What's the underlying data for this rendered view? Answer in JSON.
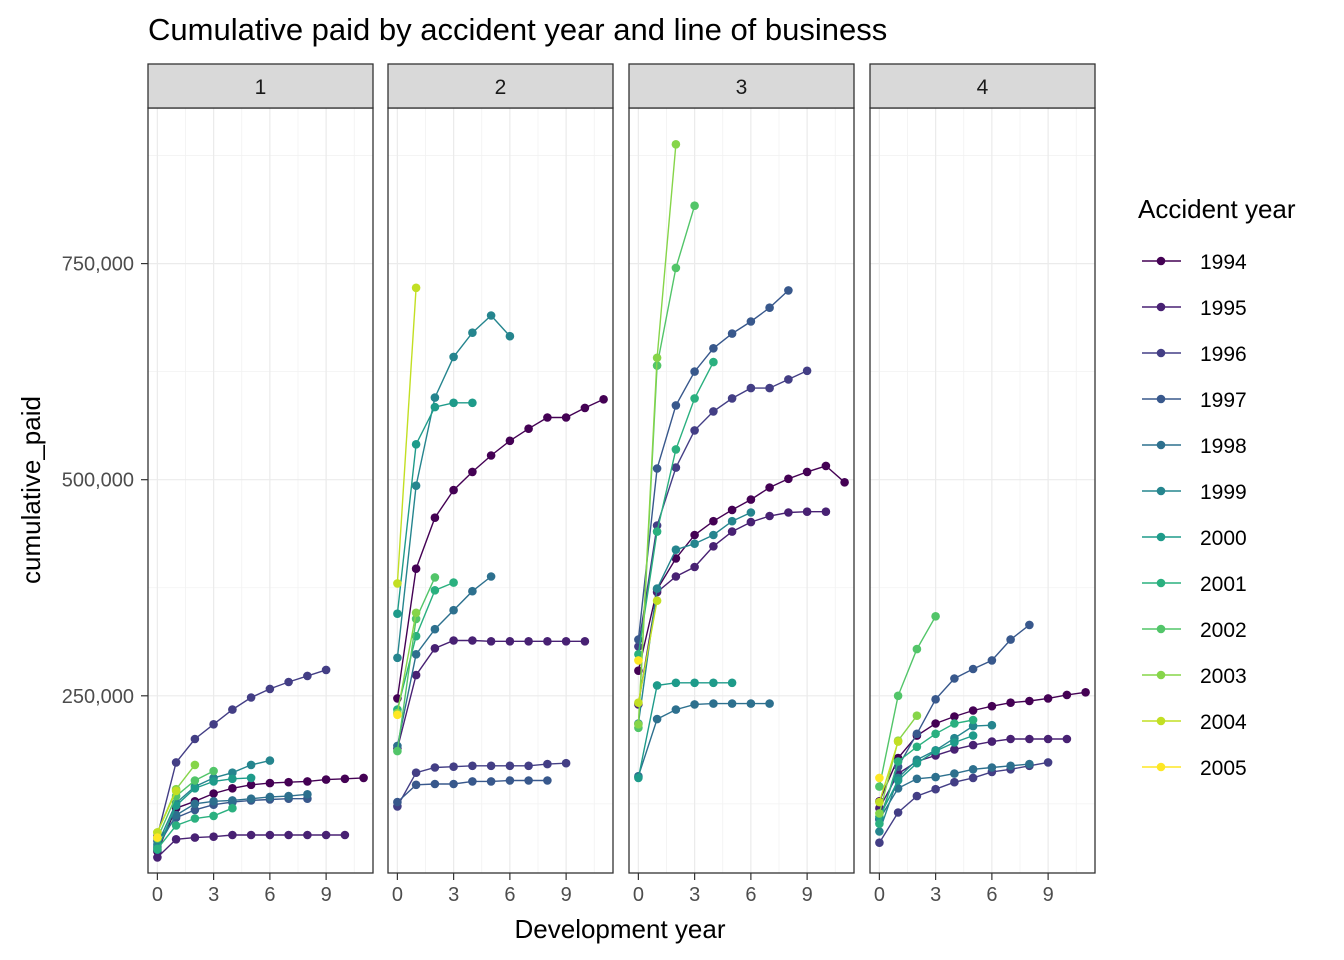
{
  "chart_data": {
    "type": "line",
    "title": "Cumulative paid by accident year and line of business",
    "xlabel": "Development year",
    "ylabel": "cumulative_paid",
    "x_ticks": [
      0,
      3,
      6,
      9
    ],
    "y_ticks": [
      250000,
      500000,
      750000
    ],
    "y_tick_labels": [
      "250,000",
      "500,000",
      "750,000"
    ],
    "xlim": [
      -0.5,
      11.5
    ],
    "ylim": [
      45000,
      930000
    ],
    "grid": true,
    "legend": {
      "title": "Accident year",
      "position": "right"
    },
    "colors": {
      "1994": "#440154",
      "1995": "#482173",
      "1996": "#433e85",
      "1997": "#38588c",
      "1998": "#2d708e",
      "1999": "#25858e",
      "2000": "#1e9b8a",
      "2001": "#2ab07f",
      "2002": "#52c569",
      "2003": "#86d549",
      "2004": "#c2df23",
      "2005": "#fde725"
    },
    "panels": [
      {
        "label": "1",
        "series": [
          {
            "name": "1994",
            "values": [
              70000,
              120000,
              128000,
              137000,
              143000,
              147000,
              149000,
              150000,
              151000,
              153000,
              154000,
              155000
            ]
          },
          {
            "name": "1995",
            "values": [
              63000,
              84000,
              86000,
              87000,
              89000,
              89000,
              89000,
              89000,
              89000,
              89000,
              89000
            ]
          },
          {
            "name": "1996",
            "values": [
              88000,
              173000,
              200000,
              217000,
              234000,
              248000,
              258000,
              266000,
              273000,
              280000
            ]
          },
          {
            "name": "1997",
            "values": [
              82000,
              109000,
              118000,
              124000,
              127000,
              129000,
              130000,
              131000,
              131000
            ]
          },
          {
            "name": "1998",
            "values": [
              75000,
              112000,
              125000,
              128000,
              129000,
              131000,
              133000,
              134000,
              136000
            ]
          },
          {
            "name": "1999",
            "values": [
              78000,
              126000,
              145000,
              155000,
              161000,
              170000,
              175000
            ]
          },
          {
            "name": "2000",
            "values": [
              72000,
              123000,
              143000,
              151000,
              154000,
              155000
            ]
          },
          {
            "name": "2001",
            "values": [
              73000,
              100000,
              108000,
              111000,
              120000
            ]
          },
          {
            "name": "2002",
            "values": [
              85000,
              134000,
              152000,
              163000
            ]
          },
          {
            "name": "2003",
            "values": [
              92000,
              142000,
              170000
            ]
          },
          {
            "name": "2004",
            "values": [
              92000,
              140000
            ]
          },
          {
            "name": "2005",
            "values": [
              86000
            ]
          }
        ]
      },
      {
        "label": "2",
        "series": [
          {
            "name": "1994",
            "values": [
              247000,
              397000,
              456000,
              488000,
              509000,
              528000,
              545000,
              559000,
              572000,
              572000,
              583000,
              593000
            ]
          },
          {
            "name": "1995",
            "values": [
              189000,
              274000,
              305000,
              314000,
              314000,
              313000,
              313000,
              313000,
              313000,
              313000,
              313000
            ]
          },
          {
            "name": "1996",
            "values": [
              122000,
              161000,
              167000,
              168000,
              169000,
              169000,
              169000,
              169000,
              171000,
              172000
            ]
          },
          {
            "name": "1997",
            "values": [
              127000,
              147000,
              148000,
              148000,
              151000,
              151000,
              152000,
              152000,
              152000
            ]
          },
          {
            "name": "1998",
            "values": [
              192000,
              298000,
              327000,
              349000,
              371000,
              388000
            ]
          },
          {
            "name": "1999",
            "values": [
              294000,
              493000,
              595000,
              642000,
              670000,
              690000,
              666000
            ]
          },
          {
            "name": "2000",
            "values": [
              345000,
              541000,
              584000,
              589000,
              589000
            ]
          },
          {
            "name": "2001",
            "values": [
              234000,
              319000,
              372000,
              381000
            ]
          },
          {
            "name": "2002",
            "values": [
              186000,
              339000,
              387000
            ]
          },
          {
            "name": "2003",
            "values": [
              230000,
              346000
            ]
          },
          {
            "name": "2004",
            "values": [
              380000,
              722000
            ]
          },
          {
            "name": "2005",
            "values": [
              228000
            ]
          }
        ]
      },
      {
        "label": "3",
        "series": [
          {
            "name": "1994",
            "values": [
              279000,
              373000,
              409000,
              436000,
              452000,
              465000,
              477000,
              491000,
              501000,
              509000,
              516000,
              497000
            ]
          },
          {
            "name": "1995",
            "values": [
              240000,
              370000,
              388000,
              399000,
              423000,
              440000,
              451000,
              458000,
              462000,
              463000,
              463000
            ]
          },
          {
            "name": "1996",
            "values": [
              307000,
              447000,
              514000,
              557000,
              579000,
              594000,
              606000,
              606000,
              616000,
              626000
            ]
          },
          {
            "name": "1997",
            "values": [
              315000,
              513000,
              586000,
              625000,
              652000,
              669000,
              683000,
              699000,
              719000
            ]
          },
          {
            "name": "1998",
            "values": [
              157000,
              223000,
              234000,
              240000,
              241000,
              241000,
              241000,
              241000
            ]
          },
          {
            "name": "1999",
            "values": [
              218000,
              374000,
              419000,
              426000,
              436000,
              452000,
              462000
            ]
          },
          {
            "name": "2000",
            "values": [
              155000,
              262000,
              265000,
              265000,
              265000,
              265000
            ]
          },
          {
            "name": "2001",
            "values": [
              298000,
              440000,
              535000,
              594000,
              636000
            ]
          },
          {
            "name": "2002",
            "values": [
              213000,
              632000,
              745000,
              817000
            ]
          },
          {
            "name": "2003",
            "values": [
              217000,
              641000,
              888000
            ]
          },
          {
            "name": "2004",
            "values": [
              242000,
              360000
            ]
          },
          {
            "name": "2005",
            "values": [
              291000
            ]
          }
        ]
      },
      {
        "label": "4",
        "series": [
          {
            "name": "1994",
            "values": [
              128000,
              178000,
              204000,
              218000,
              226000,
              233000,
              238000,
              242000,
              244000,
              247000,
              251000,
              254000
            ]
          },
          {
            "name": "1995",
            "values": [
              120000,
              160000,
              174000,
              181000,
              188000,
              193000,
              197000,
              200000,
              200000,
              200000,
              200000
            ]
          },
          {
            "name": "1996",
            "values": [
              80000,
              115000,
              134000,
              142000,
              150000,
              155000,
              162000,
              165000,
              169000,
              173000
            ]
          },
          {
            "name": "1997",
            "values": [
              107000,
              168000,
              206000,
              246000,
              270000,
              281000,
              291000,
              315000,
              332000
            ]
          },
          {
            "name": "1998",
            "values": [
              107000,
              143000,
              154000,
              156000,
              160000,
              165000,
              167000,
              169000,
              171000
            ]
          },
          {
            "name": "1999",
            "values": [
              93000,
              155000,
              176000,
              187000,
              201000,
              215000,
              216000
            ]
          },
          {
            "name": "2000",
            "values": [
              110000,
              152000,
              172000,
              186000,
              196000,
              204000
            ]
          },
          {
            "name": "2001",
            "values": [
              102000,
              174000,
              191000,
              206000,
              218000,
              222000
            ]
          },
          {
            "name": "2002",
            "values": [
              145000,
              250000,
              304000,
              342000
            ]
          },
          {
            "name": "2003",
            "values": [
              114000,
              198000,
              227000
            ]
          },
          {
            "name": "2004",
            "values": [
              127000,
              197000
            ]
          },
          {
            "name": "2005",
            "values": [
              155000
            ]
          }
        ]
      }
    ]
  }
}
